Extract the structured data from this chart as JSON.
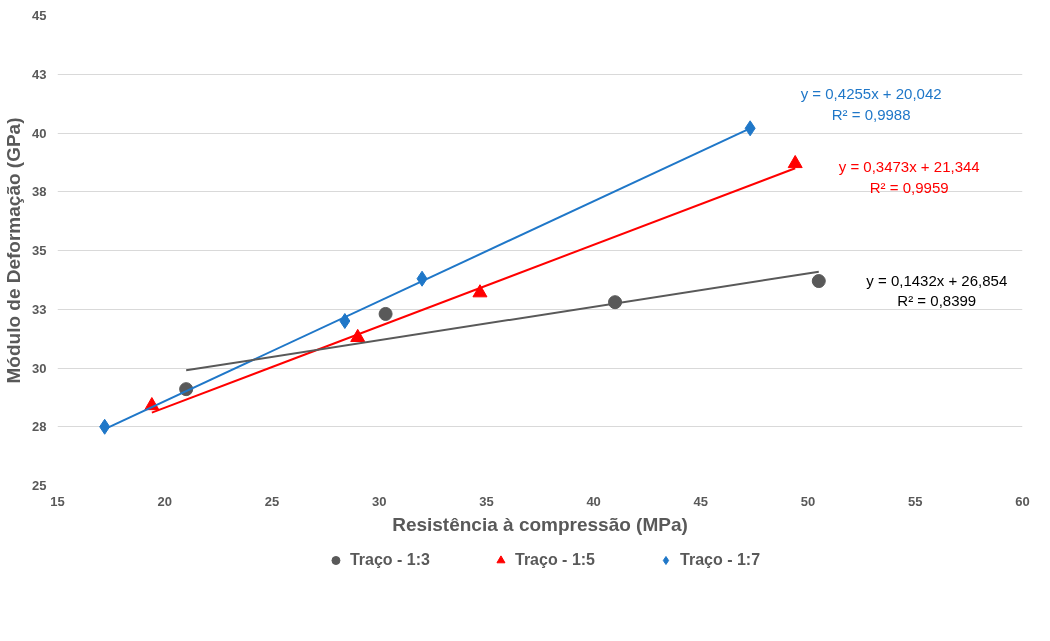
{
  "chart_data": {
    "type": "scatter",
    "xlabel": "Resistência à compressão (MPa)",
    "ylabel": "Módulo de Deformação (GPa)",
    "xlim": [
      15,
      60
    ],
    "xticks": [
      15,
      20,
      25,
      30,
      35,
      40,
      45,
      50,
      55,
      60
    ],
    "ylim": [
      25,
      45
    ],
    "yticks": [
      25,
      {
        "value": 27.5,
        "label": "28"
      },
      30,
      {
        "value": 32.5,
        "label": "33"
      },
      35,
      {
        "value": 37.5,
        "label": "38"
      },
      40,
      {
        "value": 42.5,
        "label": "43"
      },
      45
    ],
    "grid": "y",
    "legend": "bottom",
    "series": [
      {
        "name": "Traço - 1:3",
        "color": "#595959",
        "marker": "circle",
        "x": [
          21.0,
          30.3,
          41.0,
          50.5
        ],
        "values": [
          29.1,
          32.3,
          32.8,
          33.7
        ]
      },
      {
        "name": "Traço - 1:5",
        "color": "#ff0000",
        "marker": "triangle",
        "x": [
          19.4,
          29.0,
          34.7,
          49.4
        ],
        "values": [
          28.4,
          31.3,
          33.2,
          38.7
        ]
      },
      {
        "name": "Traço - 1:7",
        "color": "#1f77c8",
        "marker": "diamond",
        "x": [
          17.2,
          28.4,
          32.0,
          47.3
        ],
        "values": [
          27.5,
          32.0,
          33.8,
          40.2
        ]
      },
      {
        "type": "line",
        "color": "#1f77c8",
        "x": [
          17.2,
          47.3
        ],
        "values": [
          27.4,
          40.2
        ]
      },
      {
        "type": "line",
        "color": "#ff0000",
        "x": [
          19.4,
          49.4
        ],
        "values": [
          28.1,
          38.5
        ]
      },
      {
        "type": "line",
        "color": "#595959",
        "x": [
          21.0,
          50.5
        ],
        "values": [
          29.9,
          34.1
        ]
      }
    ],
    "annotations": [
      "y = 0,4255x + 20,042\nR² = 0,9988",
      "y = 0,3473x + 21,344\nR² = 0,9959",
      "y = 0,1432x + 26,854\nR² = 0,8399"
    ]
  }
}
